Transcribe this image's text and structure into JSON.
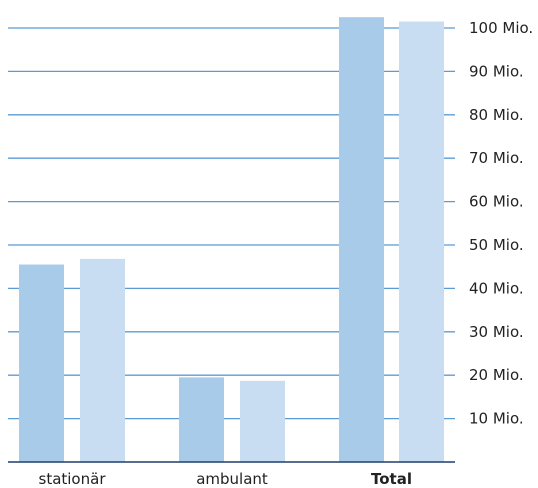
{
  "chart_data": {
    "type": "bar",
    "categories": [
      "stationär",
      "ambulant",
      "Total"
    ],
    "bold_categories": [
      "Total"
    ],
    "series": [
      {
        "values": [
          45.5,
          19.5,
          102.5
        ],
        "color": "#a9cbea"
      },
      {
        "values": [
          46.8,
          18.7,
          101.5
        ],
        "color": "#c8dcf2"
      }
    ],
    "y_ticks": [
      10,
      20,
      30,
      40,
      50,
      60,
      70,
      80,
      90,
      100
    ],
    "y_tick_labels": [
      "10 Mio.",
      "20 Mio.",
      "30 Mio.",
      "40 Mio.",
      "50 Mio.",
      "60 Mio.",
      "70 Mio.",
      "80 Mio.",
      "90 Mio.",
      "100 Mio."
    ],
    "ylim": [
      0,
      100
    ],
    "y_axis_position": "right",
    "grid": true,
    "grid_color": "#5b9bd5",
    "baseline_color": "#1f3f6e"
  }
}
